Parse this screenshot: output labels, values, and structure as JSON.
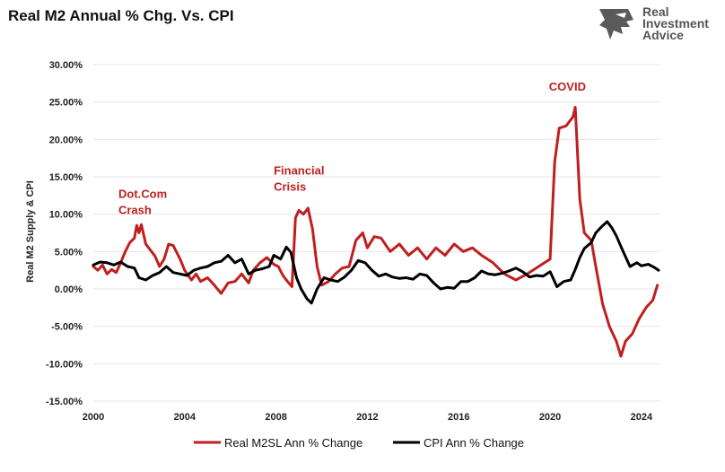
{
  "chart_data": {
    "type": "line",
    "title": "Real M2 Annual % Chg. Vs. CPI",
    "xlabel": "",
    "ylabel": "Real M2 Supply & CPI",
    "xlim": [
      2000,
      2024.83
    ],
    "ylim": [
      -15,
      30
    ],
    "x_ticks": [
      2000,
      2004,
      2008,
      2012,
      2016,
      2020,
      2024
    ],
    "x_tick_labels": [
      "2000",
      "2004",
      "2008",
      "2012",
      "2016",
      "2020",
      "2024"
    ],
    "y_ticks": [
      -15,
      -10,
      -5,
      0,
      5,
      10,
      15,
      20,
      25,
      30
    ],
    "y_tick_labels": [
      "-15.00%",
      "-10.00%",
      "-5.00%",
      "0.00%",
      "5.00%",
      "10.00%",
      "15.00%",
      "20.00%",
      "25.00%",
      "30.00%"
    ],
    "grid": "horizontal",
    "legend_position": "bottom",
    "series": [
      {
        "name": "Real M2SL Ann % Change",
        "color": "#c01f1f",
        "points": [
          [
            2000.0,
            3.0
          ],
          [
            2000.2,
            2.5
          ],
          [
            2000.4,
            3.2
          ],
          [
            2000.6,
            2.0
          ],
          [
            2000.8,
            2.6
          ],
          [
            2001.0,
            2.2
          ],
          [
            2001.2,
            3.5
          ],
          [
            2001.4,
            5.0
          ],
          [
            2001.6,
            6.2
          ],
          [
            2001.8,
            6.8
          ],
          [
            2001.9,
            8.5
          ],
          [
            2002.0,
            7.5
          ],
          [
            2002.1,
            8.6
          ],
          [
            2002.3,
            6.0
          ],
          [
            2002.5,
            5.2
          ],
          [
            2002.7,
            4.4
          ],
          [
            2002.9,
            3.0
          ],
          [
            2003.1,
            4.0
          ],
          [
            2003.3,
            6.0
          ],
          [
            2003.5,
            5.8
          ],
          [
            2003.8,
            4.0
          ],
          [
            2004.0,
            2.5
          ],
          [
            2004.3,
            1.2
          ],
          [
            2004.5,
            2.0
          ],
          [
            2004.7,
            1.0
          ],
          [
            2005.0,
            1.5
          ],
          [
            2005.3,
            0.5
          ],
          [
            2005.6,
            -0.6
          ],
          [
            2005.9,
            0.8
          ],
          [
            2006.2,
            1.0
          ],
          [
            2006.5,
            2.0
          ],
          [
            2006.8,
            0.8
          ],
          [
            2007.0,
            2.5
          ],
          [
            2007.3,
            3.5
          ],
          [
            2007.6,
            4.2
          ],
          [
            2007.9,
            3.3
          ],
          [
            2008.1,
            3.0
          ],
          [
            2008.3,
            1.8
          ],
          [
            2008.5,
            1.0
          ],
          [
            2008.7,
            0.3
          ],
          [
            2008.85,
            9.5
          ],
          [
            2009.0,
            10.5
          ],
          [
            2009.2,
            10.0
          ],
          [
            2009.4,
            10.8
          ],
          [
            2009.6,
            8.0
          ],
          [
            2009.8,
            3.0
          ],
          [
            2010.0,
            0.5
          ],
          [
            2010.3,
            1.0
          ],
          [
            2010.6,
            2.0
          ],
          [
            2010.9,
            2.8
          ],
          [
            2011.2,
            3.0
          ],
          [
            2011.5,
            6.5
          ],
          [
            2011.8,
            7.5
          ],
          [
            2012.0,
            5.5
          ],
          [
            2012.3,
            7.0
          ],
          [
            2012.6,
            6.8
          ],
          [
            2013.0,
            5.0
          ],
          [
            2013.4,
            6.0
          ],
          [
            2013.8,
            4.5
          ],
          [
            2014.2,
            5.5
          ],
          [
            2014.6,
            4.0
          ],
          [
            2015.0,
            5.5
          ],
          [
            2015.4,
            4.5
          ],
          [
            2015.8,
            6.0
          ],
          [
            2016.2,
            5.0
          ],
          [
            2016.6,
            5.5
          ],
          [
            2017.0,
            4.5
          ],
          [
            2017.5,
            3.5
          ],
          [
            2018.0,
            2.0
          ],
          [
            2018.5,
            1.2
          ],
          [
            2019.0,
            2.0
          ],
          [
            2019.5,
            3.0
          ],
          [
            2020.0,
            4.0
          ],
          [
            2020.2,
            17.0
          ],
          [
            2020.4,
            21.5
          ],
          [
            2020.7,
            21.8
          ],
          [
            2021.0,
            23.0
          ],
          [
            2021.1,
            24.3
          ],
          [
            2021.3,
            12.0
          ],
          [
            2021.5,
            7.5
          ],
          [
            2021.8,
            6.5
          ],
          [
            2022.0,
            3.0
          ],
          [
            2022.3,
            -2.0
          ],
          [
            2022.6,
            -5.0
          ],
          [
            2022.9,
            -7.0
          ],
          [
            2023.1,
            -9.0
          ],
          [
            2023.3,
            -7.0
          ],
          [
            2023.6,
            -6.0
          ],
          [
            2023.9,
            -4.0
          ],
          [
            2024.2,
            -2.5
          ],
          [
            2024.5,
            -1.5
          ],
          [
            2024.7,
            0.5
          ]
        ]
      },
      {
        "name": "CPI Ann % Change",
        "color": "#000000",
        "points": [
          [
            2000.0,
            3.2
          ],
          [
            2000.3,
            3.6
          ],
          [
            2000.6,
            3.5
          ],
          [
            2000.9,
            3.2
          ],
          [
            2001.2,
            3.6
          ],
          [
            2001.5,
            3.0
          ],
          [
            2001.8,
            2.8
          ],
          [
            2002.0,
            1.5
          ],
          [
            2002.3,
            1.2
          ],
          [
            2002.6,
            1.8
          ],
          [
            2002.9,
            2.2
          ],
          [
            2003.2,
            3.0
          ],
          [
            2003.5,
            2.2
          ],
          [
            2003.8,
            2.0
          ],
          [
            2004.1,
            1.8
          ],
          [
            2004.4,
            2.5
          ],
          [
            2004.7,
            2.8
          ],
          [
            2005.0,
            3.0
          ],
          [
            2005.3,
            3.5
          ],
          [
            2005.6,
            3.7
          ],
          [
            2005.9,
            4.5
          ],
          [
            2006.2,
            3.5
          ],
          [
            2006.5,
            4.0
          ],
          [
            2006.8,
            2.0
          ],
          [
            2007.1,
            2.5
          ],
          [
            2007.4,
            2.7
          ],
          [
            2007.7,
            3.0
          ],
          [
            2007.9,
            4.5
          ],
          [
            2008.2,
            4.0
          ],
          [
            2008.45,
            5.6
          ],
          [
            2008.65,
            4.9
          ],
          [
            2008.9,
            1.5
          ],
          [
            2009.1,
            0.0
          ],
          [
            2009.35,
            -1.3
          ],
          [
            2009.55,
            -1.9
          ],
          [
            2009.8,
            0.0
          ],
          [
            2010.1,
            1.5
          ],
          [
            2010.4,
            1.2
          ],
          [
            2010.7,
            1.0
          ],
          [
            2011.0,
            1.6
          ],
          [
            2011.3,
            2.5
          ],
          [
            2011.6,
            3.8
          ],
          [
            2011.9,
            3.5
          ],
          [
            2012.2,
            2.5
          ],
          [
            2012.5,
            1.7
          ],
          [
            2012.8,
            2.0
          ],
          [
            2013.1,
            1.6
          ],
          [
            2013.4,
            1.4
          ],
          [
            2013.7,
            1.5
          ],
          [
            2014.0,
            1.3
          ],
          [
            2014.3,
            2.0
          ],
          [
            2014.6,
            1.8
          ],
          [
            2014.9,
            0.8
          ],
          [
            2015.2,
            0.0
          ],
          [
            2015.5,
            0.2
          ],
          [
            2015.8,
            0.1
          ],
          [
            2016.1,
            1.0
          ],
          [
            2016.4,
            1.0
          ],
          [
            2016.7,
            1.5
          ],
          [
            2017.0,
            2.4
          ],
          [
            2017.3,
            2.0
          ],
          [
            2017.6,
            1.9
          ],
          [
            2017.9,
            2.1
          ],
          [
            2018.2,
            2.4
          ],
          [
            2018.5,
            2.8
          ],
          [
            2018.8,
            2.3
          ],
          [
            2019.1,
            1.6
          ],
          [
            2019.4,
            1.8
          ],
          [
            2019.7,
            1.7
          ],
          [
            2020.0,
            2.3
          ],
          [
            2020.3,
            0.3
          ],
          [
            2020.6,
            1.0
          ],
          [
            2020.9,
            1.2
          ],
          [
            2021.1,
            2.6
          ],
          [
            2021.3,
            4.2
          ],
          [
            2021.5,
            5.4
          ],
          [
            2021.8,
            6.2
          ],
          [
            2022.0,
            7.5
          ],
          [
            2022.25,
            8.3
          ],
          [
            2022.5,
            9.0
          ],
          [
            2022.7,
            8.2
          ],
          [
            2022.9,
            7.1
          ],
          [
            2023.2,
            5.0
          ],
          [
            2023.5,
            3.0
          ],
          [
            2023.8,
            3.5
          ],
          [
            2024.0,
            3.1
          ],
          [
            2024.3,
            3.3
          ],
          [
            2024.55,
            2.9
          ],
          [
            2024.75,
            2.5
          ]
        ]
      }
    ],
    "annotations": [
      {
        "lines": [
          "Dot.Com",
          "Crash"
        ],
        "x": 2001.1,
        "y": 12.2,
        "color": "#c01f1f"
      },
      {
        "lines": [
          "Financial",
          "Crisis"
        ],
        "x": 2007.9,
        "y": 15.3,
        "color": "#c01f1f"
      },
      {
        "lines": [
          "COVID"
        ],
        "x": 2019.95,
        "y": 26.5,
        "color": "#c01f1f"
      }
    ]
  },
  "brand": {
    "line1": "Real",
    "line2": "Investment",
    "line3": "Advice"
  }
}
